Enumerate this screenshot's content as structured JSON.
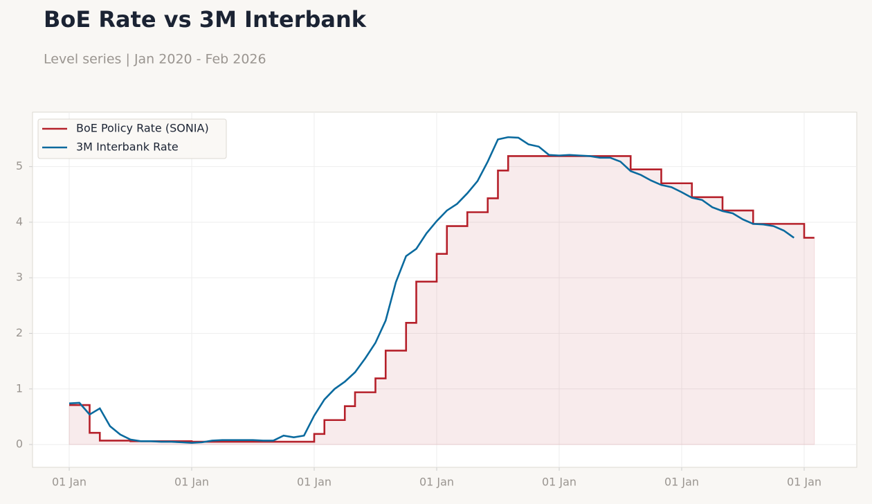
{
  "chart_data": {
    "type": "line",
    "title": "BoE Rate vs 3M Interbank",
    "subtitle": "Level series | Jan 2020 - Feb 2026",
    "categories": [
      "01 Jan",
      null,
      null,
      null,
      null,
      null,
      null,
      null,
      null,
      null,
      null,
      null,
      "01 Jan",
      null,
      null,
      null,
      null,
      null,
      null,
      null,
      null,
      null,
      null,
      null,
      "01 Jan",
      null,
      null,
      null,
      null,
      null,
      null,
      null,
      null,
      null,
      null,
      null,
      "01 Jan",
      null,
      null,
      null,
      null,
      null,
      null,
      null,
      null,
      null,
      null,
      null,
      "01 Jan",
      null,
      null,
      null,
      null,
      null,
      null,
      null,
      null,
      null,
      null,
      null,
      "01 Jan",
      null,
      null,
      null,
      null,
      null,
      null,
      null,
      null,
      null,
      null,
      null,
      "01 Jan",
      null
    ],
    "series": [
      {
        "name": "BoE Policy Rate (SONIA)",
        "color": "#b5202a",
        "drawstyle": "steps-post",
        "fill": true,
        "values": [
          0.71,
          0.71,
          0.21,
          0.07,
          0.07,
          0.07,
          0.06,
          0.06,
          0.06,
          0.06,
          0.06,
          0.06,
          0.05,
          0.05,
          0.05,
          0.05,
          0.05,
          0.05,
          0.05,
          0.05,
          0.05,
          0.05,
          0.05,
          0.05,
          0.19,
          0.44,
          0.44,
          0.69,
          0.94,
          0.94,
          1.19,
          1.69,
          1.69,
          2.19,
          2.93,
          2.93,
          3.43,
          3.93,
          3.93,
          4.18,
          4.18,
          4.43,
          4.93,
          5.19,
          5.19,
          5.19,
          5.19,
          5.19,
          5.19,
          5.19,
          5.19,
          5.19,
          5.19,
          5.19,
          5.19,
          4.95,
          4.95,
          4.95,
          4.7,
          4.7,
          4.7,
          4.45,
          4.45,
          4.45,
          4.21,
          4.21,
          4.21,
          3.97,
          3.97,
          3.97,
          3.97,
          3.97,
          3.72,
          3.72
        ]
      },
      {
        "name": "3M Interbank Rate",
        "color": "#0a6a9e",
        "drawstyle": "default",
        "fill": false,
        "values": [
          0.74,
          0.75,
          0.54,
          0.65,
          0.33,
          0.18,
          0.09,
          0.06,
          0.06,
          0.05,
          0.05,
          0.04,
          0.03,
          0.04,
          0.07,
          0.08,
          0.08,
          0.08,
          0.08,
          0.07,
          0.07,
          0.16,
          0.13,
          0.16,
          0.52,
          0.81,
          1.0,
          1.13,
          1.3,
          1.55,
          1.83,
          2.23,
          2.92,
          3.39,
          3.52,
          3.8,
          4.02,
          4.21,
          4.33,
          4.52,
          4.74,
          5.09,
          5.49,
          5.53,
          5.52,
          5.4,
          5.36,
          5.21,
          5.2,
          5.21,
          5.2,
          5.19,
          5.16,
          5.16,
          5.09,
          4.92,
          4.85,
          4.75,
          4.67,
          4.63,
          4.54,
          4.44,
          4.4,
          4.27,
          4.2,
          4.16,
          4.05,
          3.97,
          3.96,
          3.93,
          3.85,
          3.72,
          null,
          null
        ]
      }
    ],
    "ylim": [
      -0.41,
      5.98
    ],
    "yticks": [
      0,
      1,
      2,
      3,
      4,
      5
    ],
    "grid": true,
    "legend": "upper left"
  }
}
